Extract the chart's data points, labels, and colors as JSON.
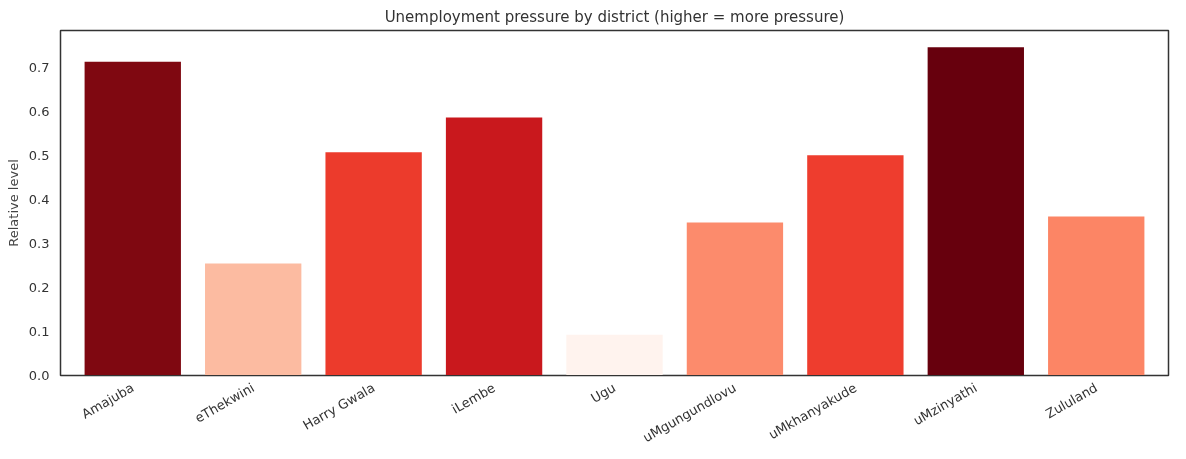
{
  "chart_data": {
    "type": "bar",
    "title": "Unemployment pressure by district (higher = more pressure)",
    "ylabel": "Relative level",
    "categories": [
      "Amajuba",
      "eThekwini",
      "Harry Gwala",
      "iLembe",
      "Ugu",
      "uMgungundlovu",
      "uMkhanyakude",
      "uMzinyathi",
      "Zululand"
    ],
    "values": [
      0.714,
      0.255,
      0.508,
      0.587,
      0.093,
      0.348,
      0.501,
      0.747,
      0.362
    ],
    "colors": [
      "#7f0811",
      "#fcbba1",
      "#ec3b2c",
      "#c9181d",
      "#fff3ee",
      "#fc8b6c",
      "#ee3d2e",
      "#67000d",
      "#fc8565"
    ],
    "ylim": [
      0,
      0.785
    ],
    "yticks": [
      {
        "value": 0,
        "label": "0.0"
      },
      0.1,
      0.2,
      0.3,
      0.4,
      0.5,
      0.6,
      0.7
    ],
    "grid": false
  }
}
